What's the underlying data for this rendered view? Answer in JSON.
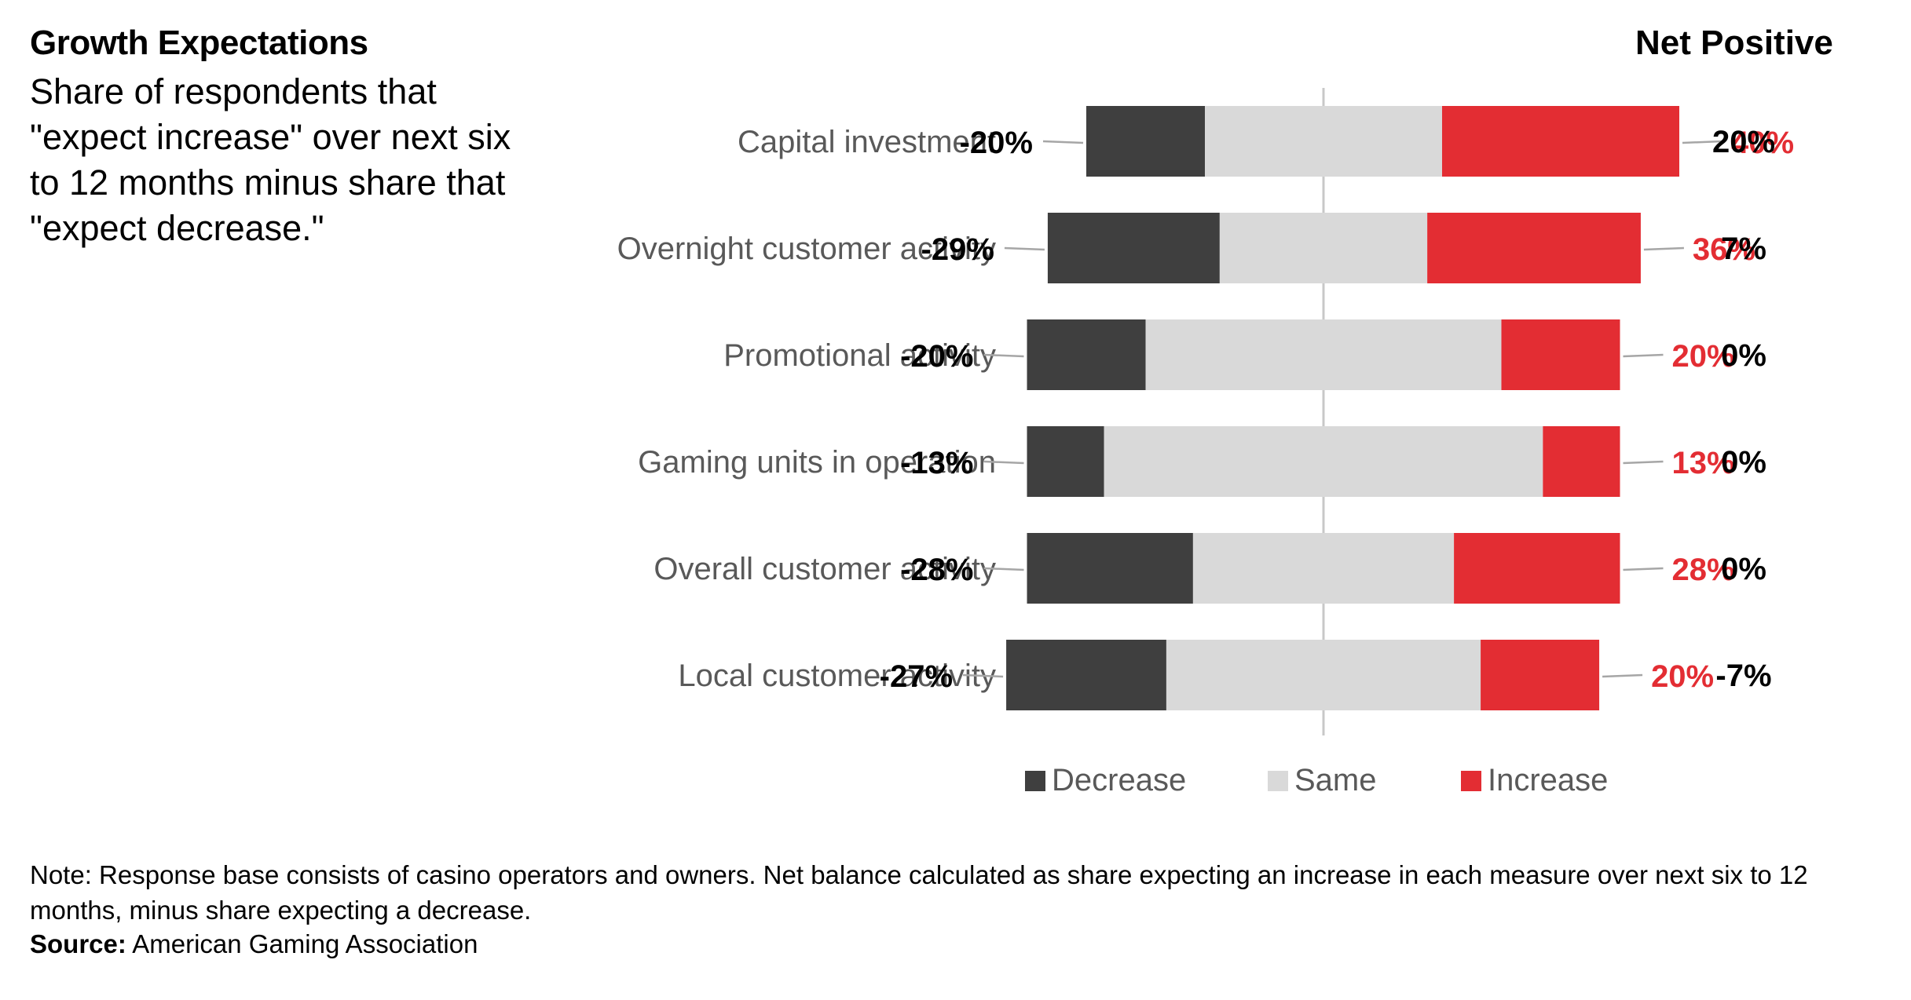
{
  "header": {
    "title": "Growth Expectations",
    "subtitle": "Share of respondents that \"expect increase\" over next six to 12 months minus share that \"expect decrease.\"",
    "net_positive_label": "Net Positive"
  },
  "chart_data": {
    "type": "bar",
    "orientation": "horizontal-diverging-stacked",
    "categories": [
      "Capital investment",
      "Overnight customer activity",
      "Promotional activity",
      "Gaming units in operation",
      "Overall customer activity",
      "Local customer activity"
    ],
    "series": [
      {
        "name": "Decrease",
        "values": [
          20,
          29,
          20,
          13,
          28,
          27
        ],
        "color": "#3f3f3f"
      },
      {
        "name": "Same",
        "values": [
          40,
          35,
          60,
          74,
          44,
          53
        ],
        "color": "#d9d9d9"
      },
      {
        "name": "Increase",
        "values": [
          40,
          36,
          20,
          13,
          28,
          20
        ],
        "color": "#e32d33"
      }
    ],
    "decrease_labels": [
      "-20%",
      "-29%",
      "-20%",
      "-13%",
      "-28%",
      "-27%"
    ],
    "increase_labels": [
      "40%",
      "36%",
      "20%",
      "13%",
      "28%",
      "20%"
    ],
    "net_positive": [
      "20%",
      "7%",
      "0%",
      "0%",
      "0%",
      "-7%"
    ],
    "legend_position": "bottom",
    "grid": false,
    "center_line": true
  },
  "footer": {
    "note": "Note: Response base consists of casino operators and owners. Net balance calculated as share expecting an increase in each measure over next six to 12 months, minus share expecting a decrease.",
    "source_label": "Source:",
    "source_text": "American Gaming Association"
  },
  "colors": {
    "decrease": "#3f3f3f",
    "same": "#d9d9d9",
    "increase": "#e32d33",
    "category_text": "#595959",
    "leader_line": "#a6a6a6"
  }
}
